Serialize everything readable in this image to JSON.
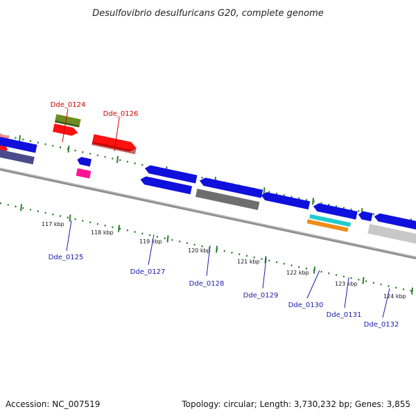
{
  "title": "Desulfovibrio desulfuricans G20, complete genome",
  "footer": {
    "accession": "Accession: NC_007519",
    "summary": "Topology: circular; Length: 3,730,232 bp; Genes: 3,855"
  },
  "colors": {
    "backbone": "#8c8c8c",
    "ruler_dot": "#2e7d2e",
    "label_red": "#cc0000",
    "label_blue": "#1a1aaa"
  },
  "scale": {
    "unit": "kbp",
    "ticks": [
      {
        "position_kbp": 117,
        "label": "117 kbp"
      },
      {
        "position_kbp": 118,
        "label": "118 kbp"
      },
      {
        "position_kbp": 119,
        "label": "119 kbp"
      },
      {
        "position_kbp": 120,
        "label": "120 kbp"
      },
      {
        "position_kbp": 121,
        "label": "121 kbp"
      },
      {
        "position_kbp": 122,
        "label": "122 kbp"
      },
      {
        "position_kbp": 123,
        "label": "123 kbp"
      },
      {
        "position_kbp": 124,
        "label": "124 kbp"
      }
    ]
  },
  "genes": [
    {
      "name": "Dde_0124",
      "strand": "+",
      "color": "#cc0000"
    },
    {
      "name": "Dde_0125",
      "strand": "-",
      "color": "#1a1aaa"
    },
    {
      "name": "Dde_0126",
      "strand": "+",
      "color": "#cc0000"
    },
    {
      "name": "Dde_0127",
      "strand": "-",
      "color": "#1a1aaa"
    },
    {
      "name": "Dde_0128",
      "strand": "-",
      "color": "#1a1aaa"
    },
    {
      "name": "Dde_0129",
      "strand": "-",
      "color": "#1a1aaa"
    },
    {
      "name": "Dde_0130",
      "strand": "-",
      "color": "#1a1aaa"
    },
    {
      "name": "Dde_0131",
      "strand": "-",
      "color": "#1a1aaa"
    },
    {
      "name": "Dde_0132",
      "strand": "-",
      "color": "#1a1aaa"
    }
  ]
}
